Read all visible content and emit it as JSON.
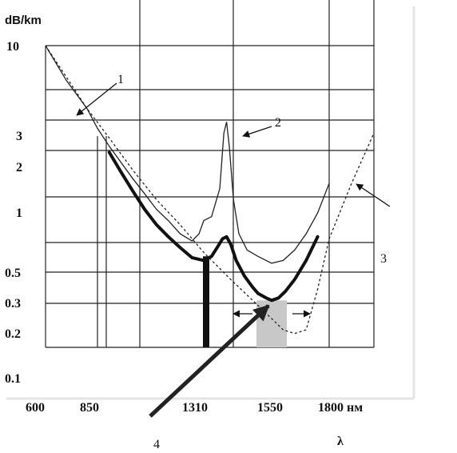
{
  "chart_data": {
    "type": "line",
    "y_unit": "dB/km",
    "x_unit": "нм",
    "x_symbol": "λ",
    "y_scale": "log",
    "grid": true,
    "x_ticks": [
      "600",
      "850",
      "1310",
      "1550",
      "1800 нм"
    ],
    "y_ticks": [
      "10",
      "3",
      "2",
      "1",
      "0.5",
      "0.3",
      "0.2",
      "0.1"
    ],
    "series": [
      {
        "label": "1",
        "style": "thin solid",
        "x": [
          600,
          700,
          800,
          850,
          900,
          950,
          1000,
          1050,
          1100,
          1150,
          1200,
          1250,
          1280,
          1300,
          1330,
          1360,
          1375,
          1385,
          1395,
          1410,
          1430,
          1460,
          1500,
          1550,
          1600,
          1650,
          1700,
          1750,
          1800
        ],
        "y": [
          10,
          6.2,
          4.2,
          3.2,
          2.5,
          2.0,
          1.6,
          1.3,
          1.05,
          0.9,
          0.75,
          0.68,
          0.75,
          0.9,
          0.95,
          1.4,
          3.0,
          3.5,
          2.5,
          1.2,
          0.75,
          0.6,
          0.55,
          0.5,
          0.52,
          0.6,
          0.75,
          1.0,
          1.5
        ]
      },
      {
        "label": "2",
        "style": "thick solid",
        "x": [
          900,
          950,
          1000,
          1050,
          1100,
          1150,
          1200,
          1250,
          1300,
          1330,
          1350,
          1370,
          1385,
          1400,
          1420,
          1450,
          1480,
          1500,
          1530,
          1550,
          1580,
          1610,
          1650,
          1700,
          1750
        ],
        "y": [
          2.3,
          1.75,
          1.35,
          1.05,
          0.85,
          0.72,
          0.62,
          0.54,
          0.52,
          0.55,
          0.62,
          0.7,
          0.72,
          0.65,
          0.52,
          0.42,
          0.36,
          0.33,
          0.31,
          0.3,
          0.31,
          0.34,
          0.4,
          0.52,
          0.72
        ]
      },
      {
        "label": "3",
        "style": "dashed",
        "x": [
          600,
          700,
          800,
          900,
          1000,
          1100,
          1200,
          1300,
          1400,
          1500,
          1600,
          1650,
          1700,
          1750,
          1800,
          1850,
          1900
        ],
        "y": [
          10,
          6.5,
          4.2,
          2.8,
          1.8,
          1.2,
          0.85,
          0.58,
          0.4,
          0.28,
          0.2,
          0.19,
          0.2,
          0.35,
          0.7,
          1.5,
          3.0
        ]
      }
    ],
    "bars": [
      {
        "x": 1310,
        "y": 0.55,
        "style": "black"
      },
      {
        "x": 1550,
        "y": 0.3,
        "style": "gray"
      }
    ],
    "annotations": [
      {
        "text": "1",
        "target": "series 1"
      },
      {
        "text": "2",
        "target": "water peak"
      },
      {
        "text": "3",
        "target": "series 3"
      },
      {
        "text": "4",
        "target": "1550 window"
      }
    ]
  }
}
